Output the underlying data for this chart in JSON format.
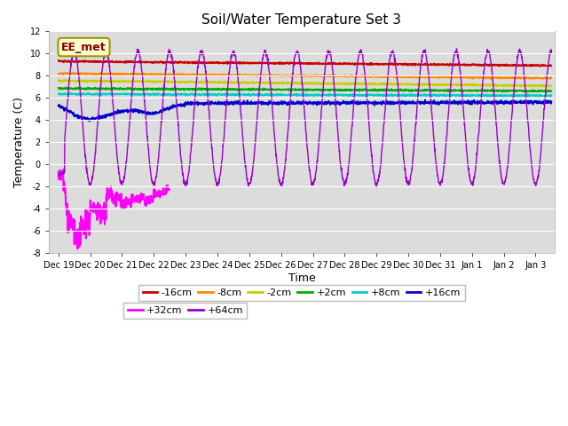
{
  "title": "Soil/Water Temperature Set 3",
  "xlabel": "Time",
  "ylabel": "Temperature (C)",
  "ylim": [
    -8,
    12
  ],
  "x_tick_labels": [
    "Dec 19",
    "Dec 20",
    "Dec 21",
    "Dec 22",
    "Dec 23",
    "Dec 24",
    "Dec 25",
    "Dec 26",
    "Dec 27",
    "Dec 28",
    "Dec 29",
    "Dec 30",
    "Dec 31",
    "Jan 1",
    "Jan 2",
    "Jan 3"
  ],
  "series": [
    {
      "label": "-16cm",
      "color": "#cc0000"
    },
    {
      "label": "-8cm",
      "color": "#ff8800"
    },
    {
      "label": "-2cm",
      "color": "#cccc00"
    },
    {
      "label": "+2cm",
      "color": "#00aa00"
    },
    {
      "label": "+8cm",
      "color": "#00cccc"
    },
    {
      "label": "+16cm",
      "color": "#0000cc"
    },
    {
      "label": "+32cm",
      "color": "#ff00ff"
    },
    {
      "label": "+64cm",
      "color": "#9900cc"
    }
  ],
  "annotation_text": "EE_met",
  "fig_facecolor": "#ffffff",
  "plot_facecolor": "#dcdcdc",
  "grid_color": "#ffffff",
  "yticks": [
    -8,
    -6,
    -4,
    -2,
    0,
    2,
    4,
    6,
    8,
    10,
    12
  ],
  "legend_ncol_row1": 6,
  "legend_ncol_row2": 2,
  "figsize": [
    6.4,
    4.8
  ],
  "dpi": 100
}
